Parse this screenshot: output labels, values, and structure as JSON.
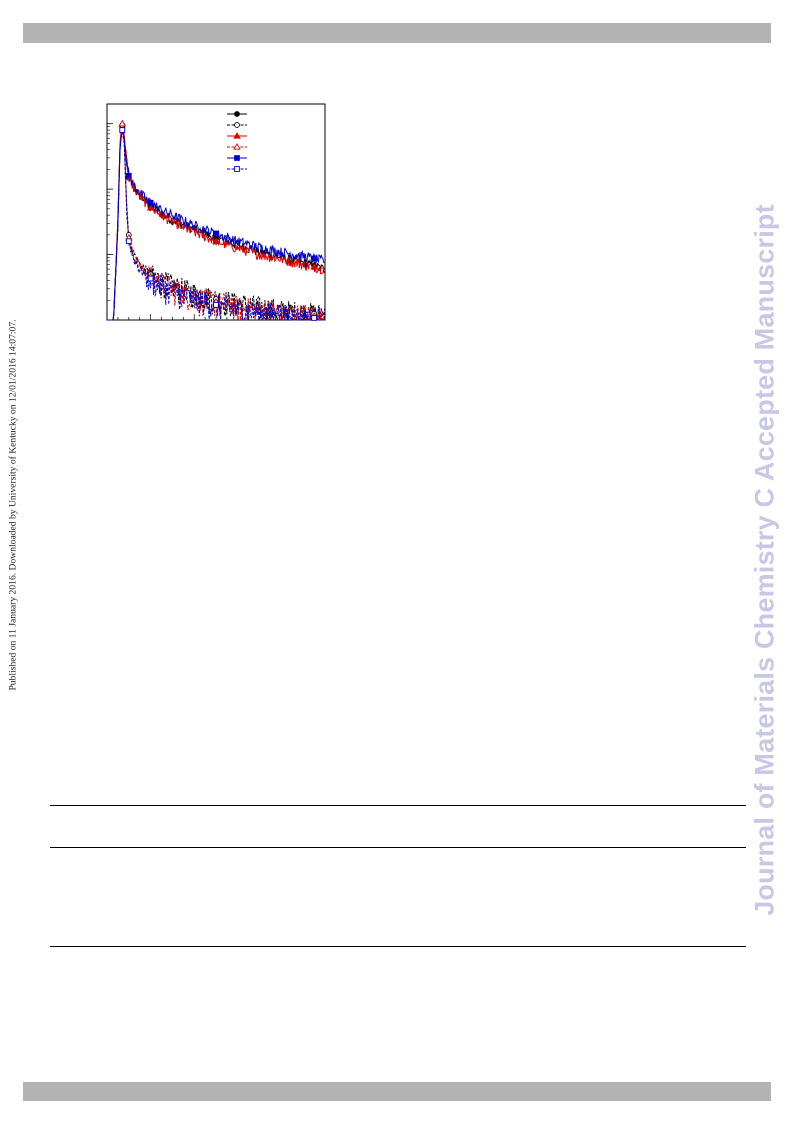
{
  "page": {
    "side_note": "Published on 11 January 2016. Downloaded by University of Kentucky on 12/01/2016 14:07:07.",
    "watermark": "Journal of Materials Chemistry C Accepted Manuscript"
  },
  "chart_data": {
    "type": "line",
    "yscale": "log",
    "xlim": [
      0,
      100
    ],
    "ylim": [
      1,
      2000
    ],
    "grid": false,
    "legend_position": "top-right",
    "legend_names_printed": false,
    "title": "",
    "xlabel": "",
    "ylabel": "",
    "x": [
      0,
      3,
      5,
      6,
      7,
      8,
      9,
      10,
      12,
      15,
      20,
      25,
      30,
      40,
      50,
      60,
      70,
      80,
      90,
      100
    ],
    "series": [
      {
        "color": "#000000",
        "line": "solid",
        "marker": "filled-circle",
        "values": [
          1,
          1,
          30,
          500,
          900,
          600,
          260,
          150,
          110,
          80,
          55,
          42,
          34,
          24,
          18,
          14,
          11,
          9,
          7.5,
          6
        ]
      },
      {
        "color": "#000000",
        "line": "dashed",
        "marker": "open-circle",
        "values": [
          1,
          1,
          30,
          500,
          950,
          500,
          60,
          20,
          11,
          7,
          5,
          4,
          3.4,
          2.6,
          2.1,
          1.8,
          1.6,
          1.4,
          1.3,
          1.2
        ]
      },
      {
        "color": "#e00000",
        "line": "solid",
        "marker": "filled-triangle",
        "values": [
          1,
          1,
          35,
          560,
          1000,
          650,
          270,
          150,
          108,
          78,
          52,
          40,
          32,
          22,
          16,
          12.5,
          10,
          8.5,
          7,
          6
        ]
      },
      {
        "color": "#e00000",
        "line": "dashed",
        "marker": "open-triangle",
        "values": [
          1,
          1,
          35,
          550,
          1000,
          520,
          55,
          18,
          10,
          6.5,
          4.6,
          3.6,
          3,
          2.3,
          1.9,
          1.6,
          1.4,
          1.3,
          1.2,
          1.1
        ]
      },
      {
        "color": "#0000cc",
        "line": "solid",
        "marker": "filled-square",
        "values": [
          1,
          1,
          28,
          450,
          800,
          600,
          280,
          160,
          118,
          88,
          62,
          48,
          40,
          28,
          21,
          16,
          13,
          11,
          9.5,
          8
        ]
      },
      {
        "color": "#0000cc",
        "line": "dashed",
        "marker": "open-square",
        "values": [
          1,
          1,
          28,
          450,
          800,
          450,
          50,
          16,
          9,
          6,
          4.3,
          3.3,
          2.8,
          2.1,
          1.7,
          1.5,
          1.3,
          1.2,
          1.1,
          1.05
        ]
      }
    ]
  }
}
